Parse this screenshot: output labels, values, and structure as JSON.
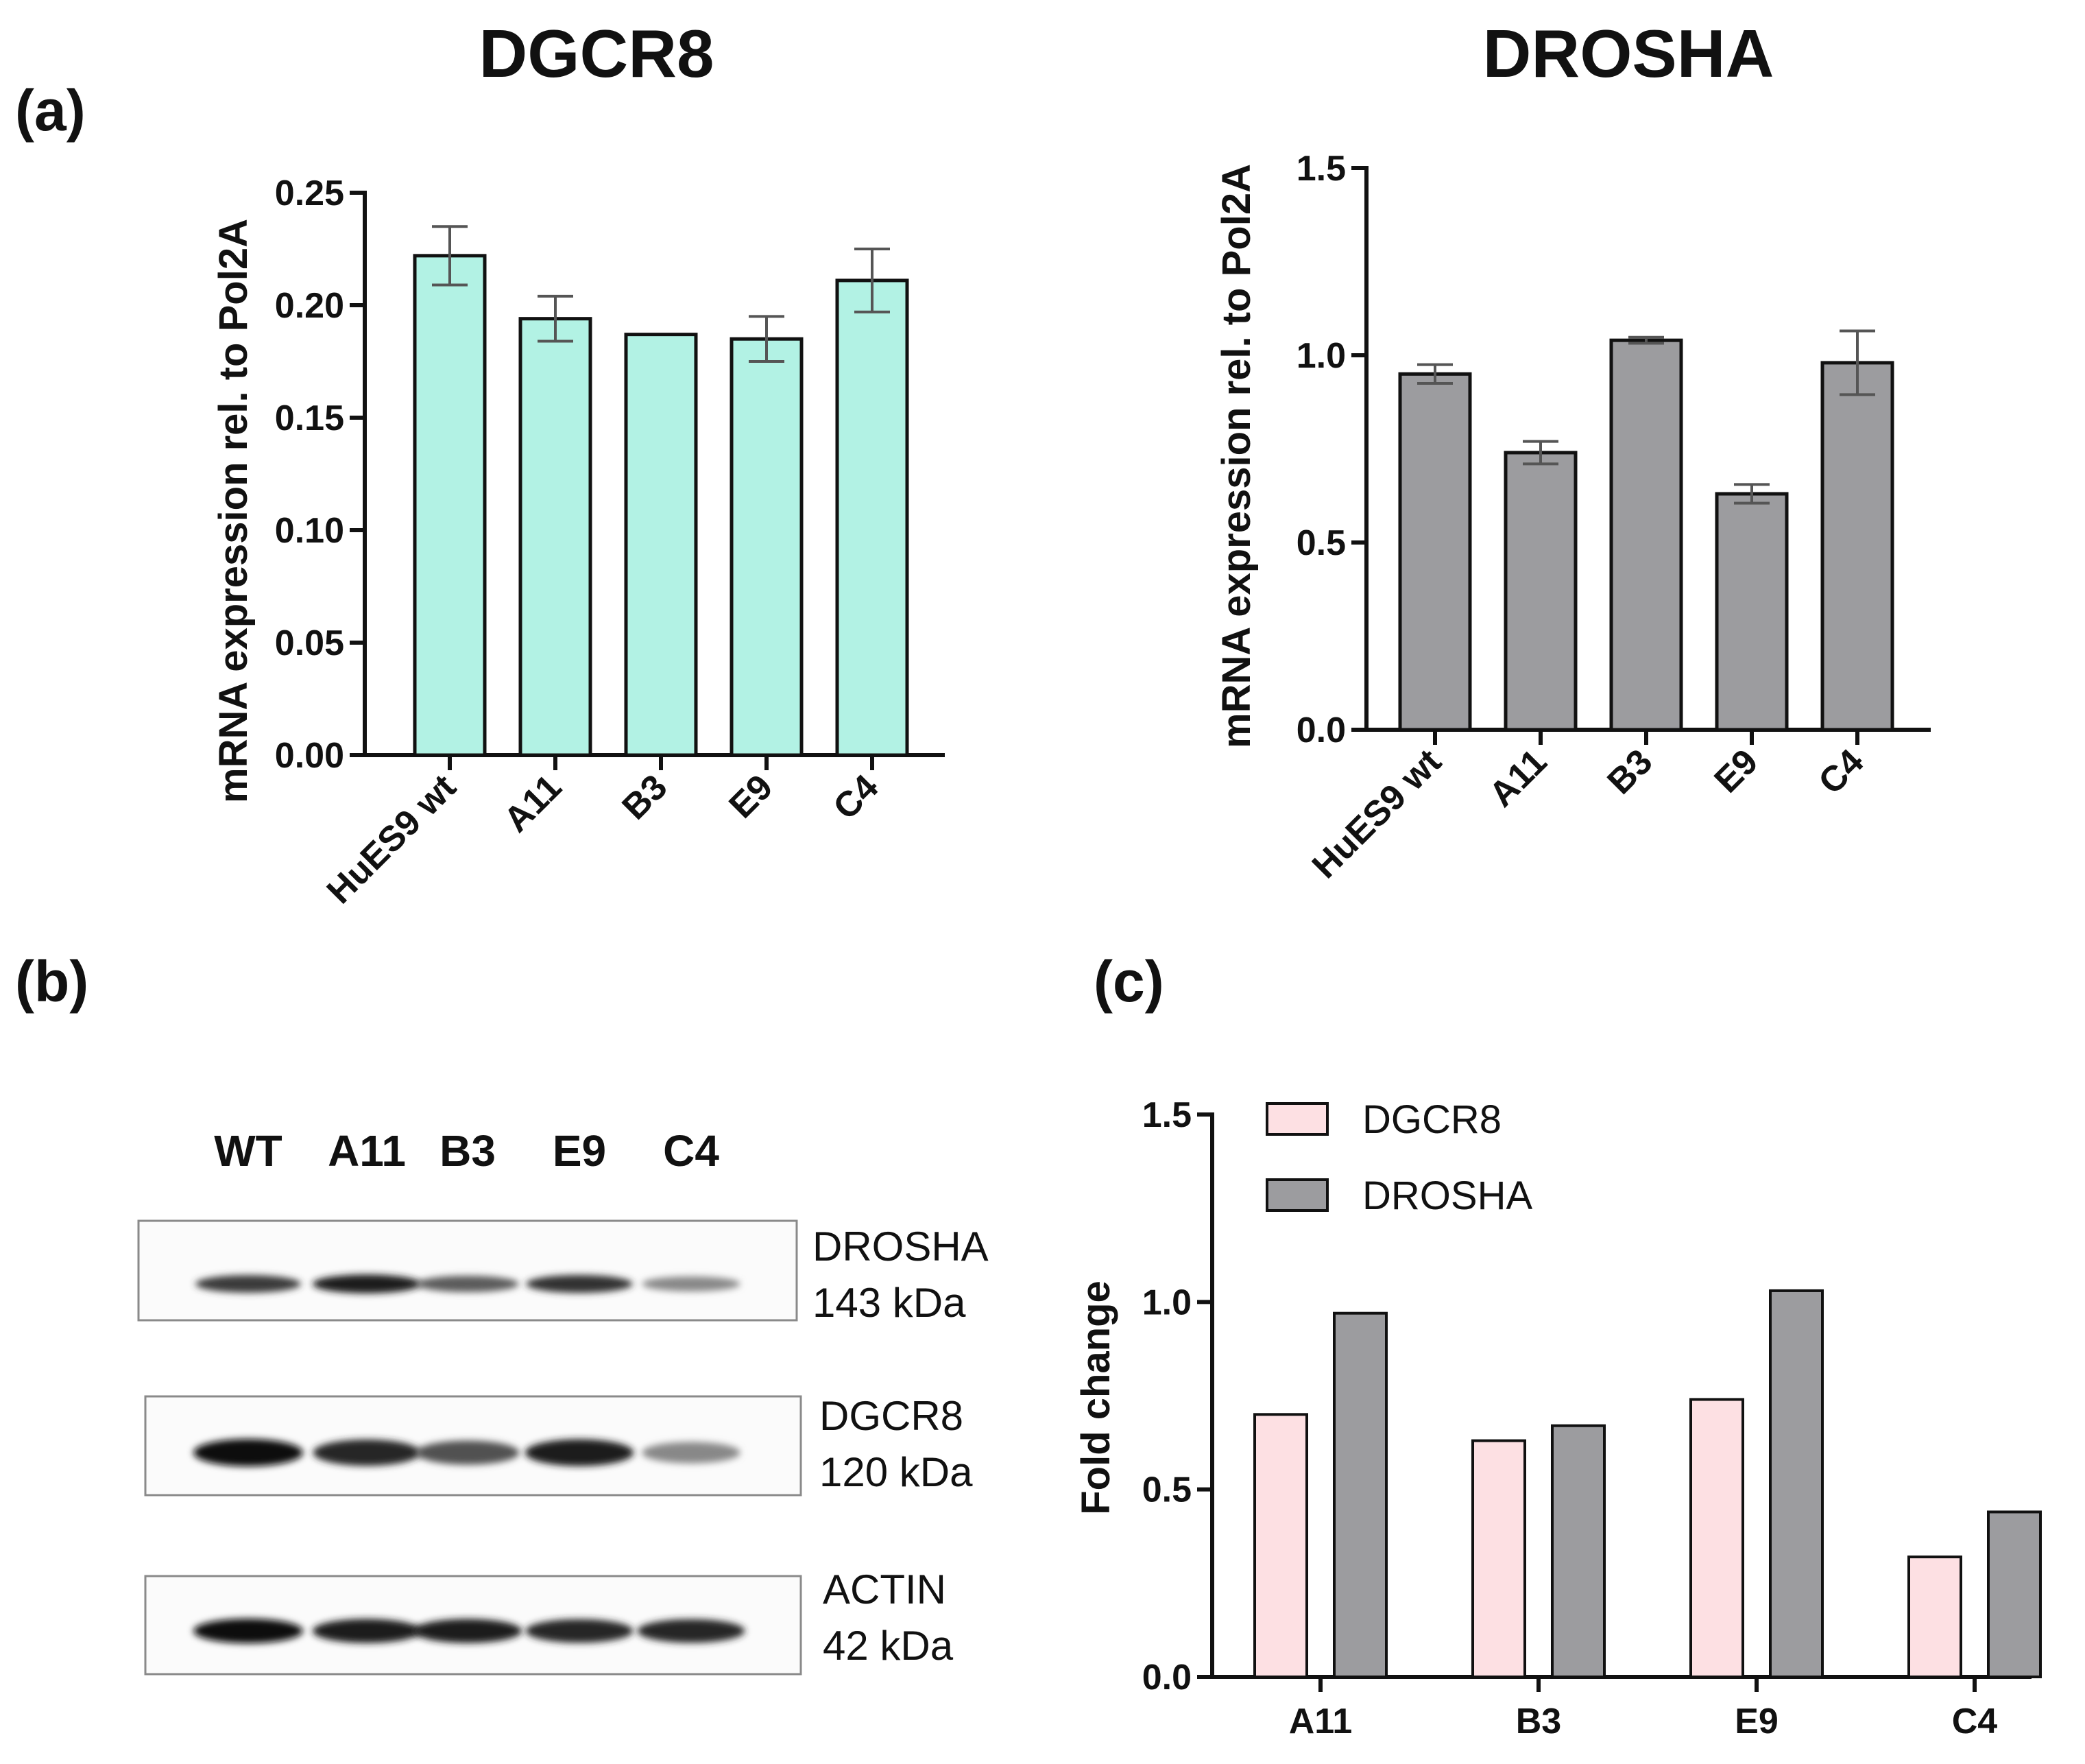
{
  "panel_labels": {
    "a": "(a)",
    "b": "(b)",
    "c": "(c)"
  },
  "chart_data": [
    {
      "type": "bar",
      "title": "DGCR8",
      "ylabel": "mRNA expression rel. to Pol2A",
      "xlabel": "",
      "categories": [
        "HuES9 wt",
        "A11",
        "B3",
        "E9",
        "C4"
      ],
      "values": [
        0.222,
        0.194,
        0.187,
        0.185,
        0.211
      ],
      "errors": [
        0.013,
        0.01,
        0.0,
        0.01,
        0.014
      ],
      "ylim": [
        0,
        0.25
      ],
      "yticks": [
        "0.00",
        "0.05",
        "0.10",
        "0.15",
        "0.20",
        "0.25"
      ],
      "bar_color": "#b2f2e4"
    },
    {
      "type": "bar",
      "title": "DROSHA",
      "ylabel": "mRNA expression rel. to Pol2A",
      "xlabel": "",
      "categories": [
        "HuES9 wt",
        "A11",
        "B3",
        "E9",
        "C4"
      ],
      "values": [
        0.95,
        0.74,
        1.04,
        0.63,
        0.98
      ],
      "errors": [
        0.025,
        0.03,
        0.008,
        0.025,
        0.085
      ],
      "ylim": [
        0,
        1.5
      ],
      "yticks": [
        "0.0",
        "0.5",
        "1.0",
        "1.5"
      ],
      "bar_color": "#9c9c9f"
    },
    {
      "type": "bar",
      "title": "",
      "ylabel": "Fold change",
      "xlabel": "",
      "categories": [
        "A11",
        "B3",
        "E9",
        "C4"
      ],
      "series": [
        {
          "name": "DGCR8",
          "values": [
            0.7,
            0.63,
            0.74,
            0.32
          ],
          "color": "#fde0e3"
        },
        {
          "name": "DROSHA",
          "values": [
            0.97,
            0.67,
            1.03,
            0.44
          ],
          "color": "#9c9c9f"
        }
      ],
      "ylim": [
        0,
        1.5
      ],
      "yticks": [
        "0.0",
        "0.5",
        "1.0",
        "1.5"
      ],
      "legend_position": "top-left"
    }
  ],
  "western_blot": {
    "lanes": [
      "WT",
      "A11",
      "B3",
      "E9",
      "C4"
    ],
    "blots": [
      {
        "protein": "DROSHA",
        "size": "143 kDa",
        "intensities": [
          0.8,
          0.95,
          0.65,
          0.85,
          0.45
        ]
      },
      {
        "protein": "DGCR8",
        "size": "120 kDa",
        "intensities": [
          1.0,
          0.9,
          0.7,
          0.95,
          0.45
        ]
      },
      {
        "protein": "ACTIN",
        "size": "42 kDa",
        "intensities": [
          1.0,
          0.95,
          0.95,
          0.9,
          0.9
        ]
      }
    ]
  }
}
